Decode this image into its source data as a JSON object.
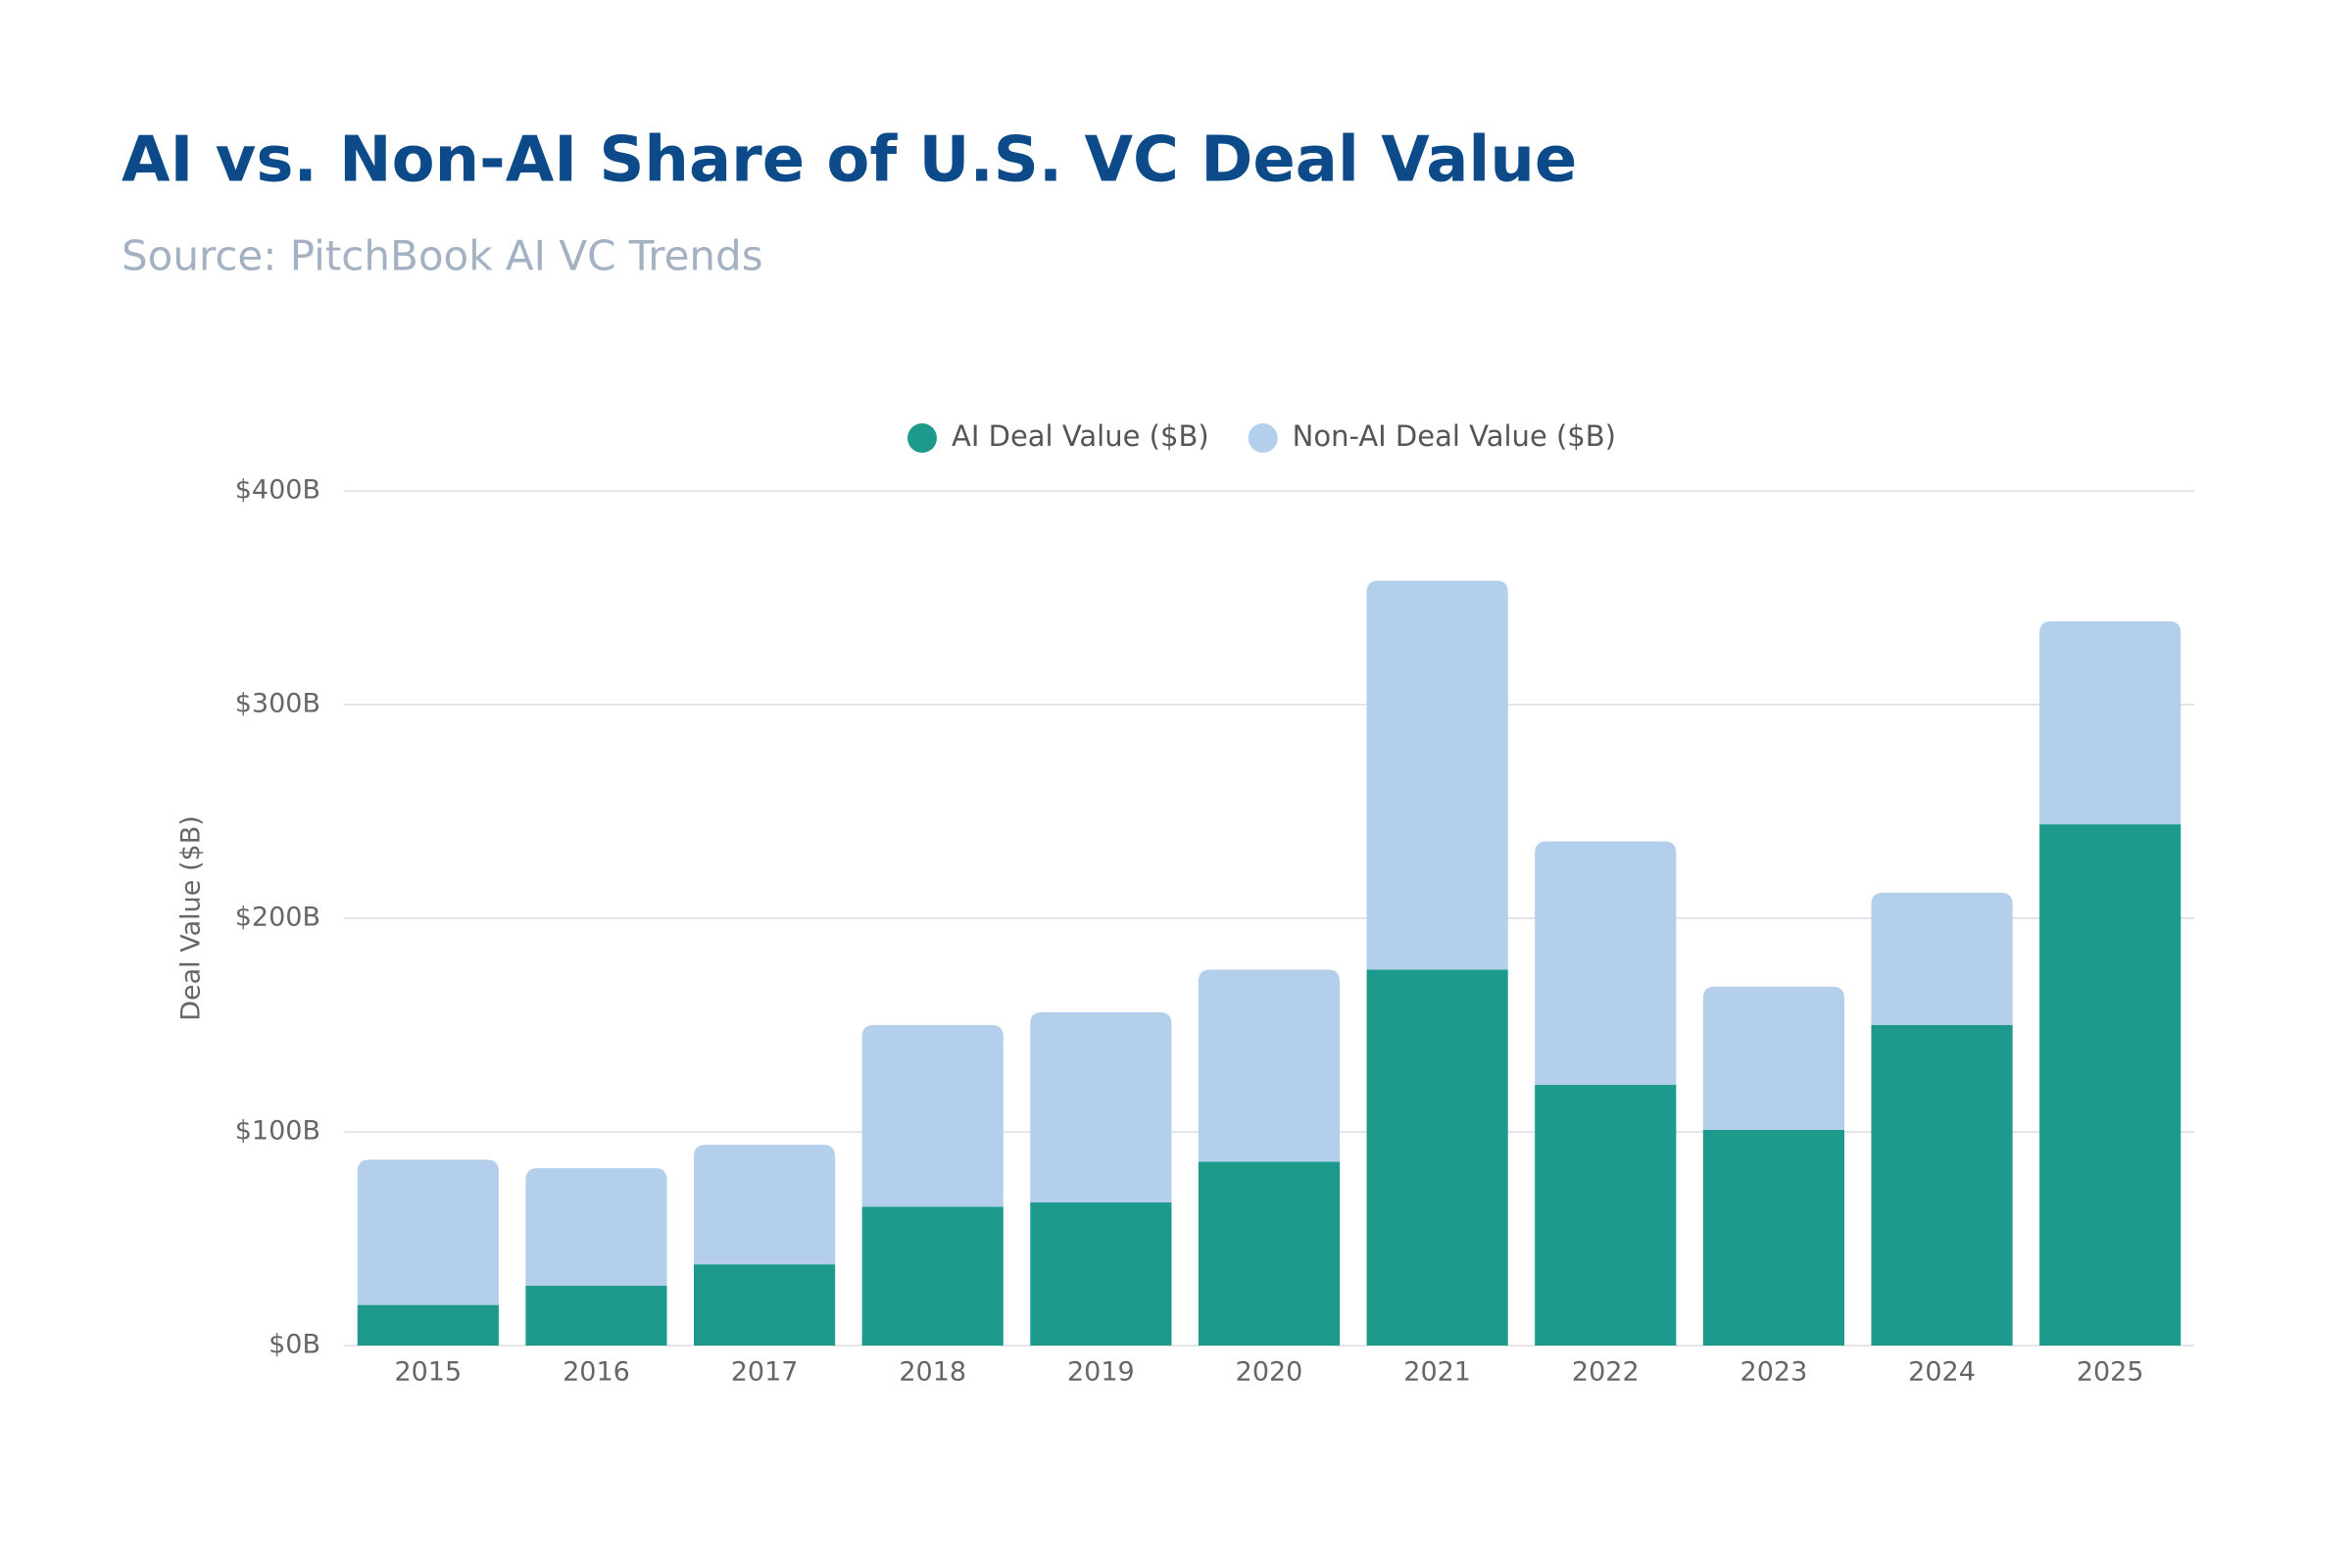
{
  "chart_data": {
    "type": "stacked-bar",
    "title": "AI vs. Non-AI Share of U.S. VC Deal Value",
    "subtitle": "Source: PitchBook AI VC Trends",
    "y_label": "Deal Value ($B)",
    "categories": [
      "2015",
      "2016",
      "2017",
      "2018",
      "2019",
      "2020",
      "2021",
      "2022",
      "2023",
      "2024",
      "2025"
    ],
    "series": [
      {
        "name": "AI Deal Value ($B)",
        "color": "#1d9a8c",
        "values": [
          19,
          28,
          38,
          65,
          67,
          86,
          176,
          122,
          101,
          150,
          244
        ]
      },
      {
        "name": "Non-AI Deal Value ($B)",
        "color": "#b3cfec",
        "values": [
          68,
          55,
          56,
          85,
          89,
          90,
          182,
          114,
          67,
          62,
          95
        ]
      }
    ],
    "ylim": [
      0,
      400
    ],
    "yticks": [
      {
        "value": 0,
        "label": "$0B"
      },
      {
        "value": 100,
        "label": "$100B"
      },
      {
        "value": 200,
        "label": "$200B"
      },
      {
        "value": 300,
        "label": "$300B"
      },
      {
        "value": 400,
        "label": "$400B"
      }
    ],
    "grid": true,
    "legend": "top"
  }
}
